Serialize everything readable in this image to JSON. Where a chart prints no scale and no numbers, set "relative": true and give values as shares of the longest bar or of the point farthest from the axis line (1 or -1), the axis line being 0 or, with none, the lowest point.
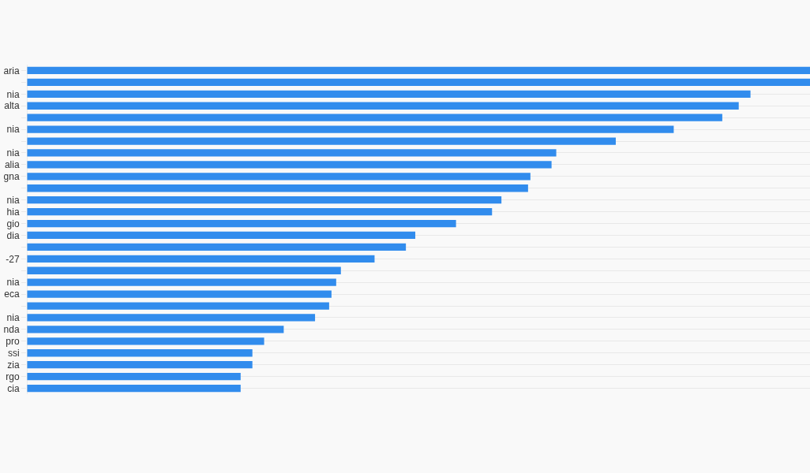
{
  "chart_data": {
    "type": "bar",
    "orientation": "horizontal",
    "relative": true,
    "grid": "y",
    "categories": [
      "aria",
      null,
      "nia",
      "alta",
      null,
      "nia",
      null,
      "nia",
      "alia",
      "gna",
      null,
      "nia",
      "hia",
      "gio",
      "dia",
      null,
      "-27",
      null,
      "nia",
      "eca",
      null,
      "nia",
      "nda",
      "pro",
      "ssi",
      "zia",
      "rgo",
      "cia"
    ],
    "series": [
      {
        "color": "#318ced",
        "values": [
          1,
          1,
          0.924,
          0.909,
          0.888,
          0.826,
          0.752,
          0.676,
          0.67,
          0.643,
          0.64,
          0.606,
          0.594,
          0.548,
          0.496,
          0.484,
          0.444,
          0.401,
          0.395,
          0.389,
          0.386,
          0.368,
          0.328,
          0.303,
          0.288,
          0.288,
          0.273,
          0.273
        ]
      }
    ]
  }
}
